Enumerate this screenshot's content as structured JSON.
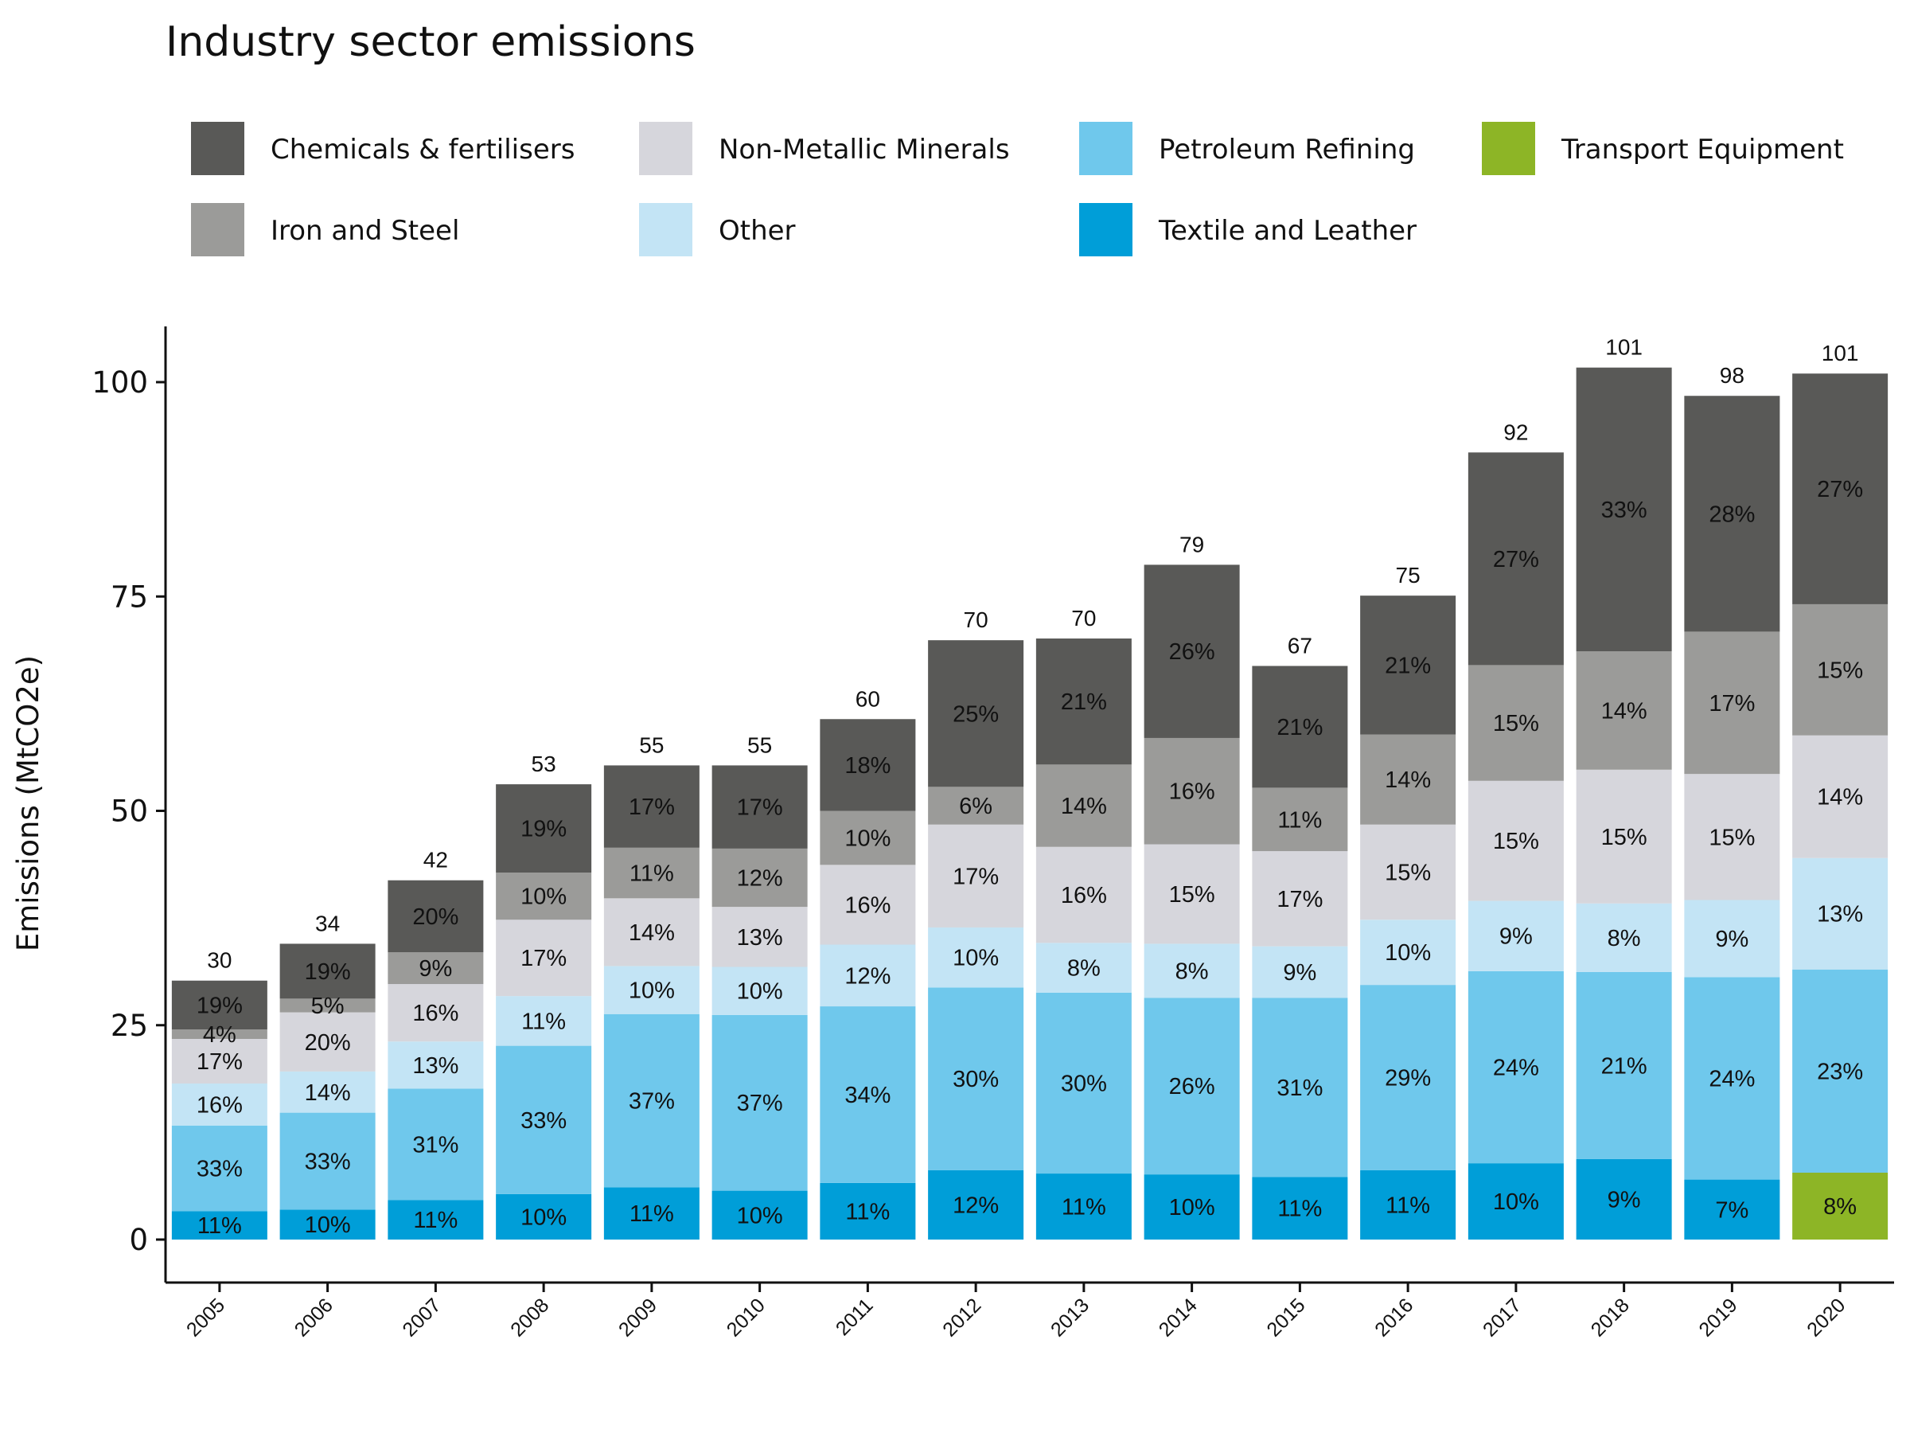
{
  "chart_data": {
    "type": "bar",
    "stacked": true,
    "title": "Industry sector emissions",
    "xlabel": "",
    "ylabel": "Emissions (MtCO2e)",
    "ylim": [
      -5,
      108
    ],
    "yticks": [
      0,
      25,
      50,
      75,
      100
    ],
    "grid": false,
    "legend_position": "top",
    "categories": [
      "2005",
      "2006",
      "2007",
      "2008",
      "2009",
      "2010",
      "2011",
      "2012",
      "2013",
      "2014",
      "2015",
      "2016",
      "2017",
      "2018",
      "2019",
      "2020"
    ],
    "totals": [
      30,
      34,
      42,
      53,
      55,
      55,
      60,
      70,
      70,
      79,
      67,
      75,
      92,
      101,
      98,
      101
    ],
    "legend_order": [
      "Chemicals & fertilisers",
      "Non-Metallic Minerals",
      "Petroleum Refining",
      "Transport Equipment",
      "Iron and Steel",
      "Other",
      "Textile and Leather"
    ],
    "series": [
      {
        "name": "Textile and Leather",
        "color": "#009ed8",
        "values": [
          3.3,
          3.5,
          4.6,
          5.3,
          6.1,
          5.7,
          6.6,
          8.1,
          7.7,
          7.6,
          7.3,
          8.1,
          8.9,
          9.4,
          7.0,
          null
        ],
        "labels": [
          "11%",
          "10%",
          "11%",
          "10%",
          "11%",
          "10%",
          "11%",
          "12%",
          "11%",
          "10%",
          "11%",
          "11%",
          "10%",
          "9%",
          "7%",
          ""
        ]
      },
      {
        "name": "Transport Equipment",
        "color": "#8db526",
        "values": [
          null,
          null,
          null,
          null,
          null,
          null,
          null,
          null,
          null,
          null,
          null,
          null,
          null,
          null,
          null,
          7.8
        ],
        "labels": [
          "",
          "",
          "",
          "",
          "",
          "",
          "",
          "",
          "",
          "",
          "",
          "",
          "",
          "",
          "",
          "8%"
        ]
      },
      {
        "name": "Petroleum Refining",
        "color": "#6fc8ec",
        "values": [
          10.0,
          11.3,
          13.0,
          17.3,
          20.2,
          20.5,
          20.6,
          21.3,
          21.1,
          20.6,
          20.9,
          21.6,
          22.4,
          21.8,
          23.6,
          23.7
        ],
        "labels": [
          "33%",
          "33%",
          "31%",
          "33%",
          "37%",
          "37%",
          "34%",
          "30%",
          "30%",
          "26%",
          "31%",
          "29%",
          "24%",
          "21%",
          "24%",
          "23%"
        ]
      },
      {
        "name": "Other",
        "color": "#c3e4f5",
        "values": [
          4.9,
          4.8,
          5.5,
          5.8,
          5.6,
          5.6,
          7.2,
          7.0,
          5.8,
          6.3,
          6.0,
          7.6,
          8.2,
          8.0,
          9.0,
          13.0
        ],
        "labels": [
          "16%",
          "14%",
          "13%",
          "11%",
          "10%",
          "10%",
          "12%",
          "10%",
          "8%",
          "8%",
          "9%",
          "10%",
          "9%",
          "8%",
          "9%",
          "13%"
        ]
      },
      {
        "name": "Non-Metallic Minerals",
        "color": "#d6d6dc",
        "values": [
          5.2,
          6.9,
          6.7,
          8.9,
          7.9,
          7.0,
          9.3,
          12.0,
          11.2,
          11.6,
          11.1,
          11.1,
          14.0,
          15.6,
          14.7,
          14.3
        ],
        "labels": [
          "17%",
          "20%",
          "16%",
          "17%",
          "14%",
          "13%",
          "16%",
          "17%",
          "16%",
          "15%",
          "17%",
          "15%",
          "15%",
          "15%",
          "15%",
          "14%"
        ]
      },
      {
        "name": "Iron and Steel",
        "color": "#9b9b99",
        "values": [
          1.1,
          1.6,
          3.7,
          5.5,
          5.9,
          6.8,
          6.3,
          4.4,
          9.6,
          12.4,
          7.4,
          10.5,
          13.5,
          13.8,
          16.6,
          15.3
        ],
        "labels": [
          "4%",
          "5%",
          "9%",
          "10%",
          "11%",
          "12%",
          "10%",
          "6%",
          "14%",
          "16%",
          "11%",
          "14%",
          "15%",
          "14%",
          "17%",
          "15%"
        ]
      },
      {
        "name": "Chemicals & fertilisers",
        "color": "#595957",
        "values": [
          5.7,
          6.4,
          8.4,
          10.3,
          9.6,
          9.7,
          10.7,
          17.1,
          14.7,
          20.2,
          14.2,
          16.2,
          24.8,
          33.1,
          27.5,
          26.9
        ],
        "labels": [
          "19%",
          "19%",
          "20%",
          "19%",
          "17%",
          "17%",
          "18%",
          "25%",
          "21%",
          "26%",
          "21%",
          "21%",
          "27%",
          "33%",
          "28%",
          "27%"
        ]
      }
    ]
  }
}
